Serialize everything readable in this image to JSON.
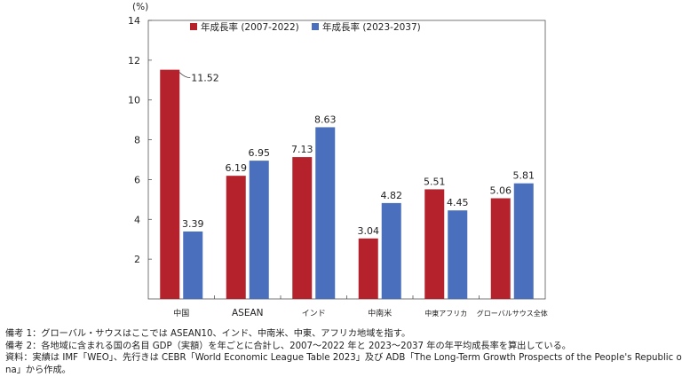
{
  "chart_data": {
    "type": "bar",
    "unit_label": "(%)",
    "categories": [
      "中国",
      "ASEAN",
      "インド",
      "中南米",
      "中東アフリカ",
      "グローバルサウス全体"
    ],
    "series": [
      {
        "name": "年成長率 (2007-2022)",
        "color": "#b5222c",
        "values": [
          11.52,
          6.19,
          7.13,
          3.04,
          5.51,
          5.06
        ]
      },
      {
        "name": "年成長率 (2023-2037)",
        "color": "#4a6fbc",
        "values": [
          3.39,
          6.95,
          8.63,
          4.82,
          4.45,
          5.81
        ]
      }
    ],
    "value_labels": [
      [
        "11.52",
        "6.19",
        "7.13",
        "3.04",
        "5.51",
        "5.06"
      ],
      [
        "3.39",
        "6.95",
        "8.63",
        "4.82",
        "4.45",
        "5.81"
      ]
    ],
    "ylim": [
      0,
      14
    ],
    "yticks": [
      2,
      4,
      6,
      8,
      10,
      12,
      14
    ],
    "grid": false,
    "legend_position": "top-left"
  },
  "notes": [
    "備考 1：グローバル・サウスはここでは ASEAN10、インド、中南米、中東、アフリカ地域を指す。",
    "備考 2：各地域に含まれる国の名目 GDP（実額）を年ごとに合計し、2007〜2022 年と 2023〜2037 年の年平均成長率を算出している。",
    "資料：実績は IMF「WEO」、先行きは CEBR「World Economic League Table 2023」及び ADB「The Long-Term Growth Prospects of the People's Republic of Chi-",
    "na」から作成。"
  ]
}
